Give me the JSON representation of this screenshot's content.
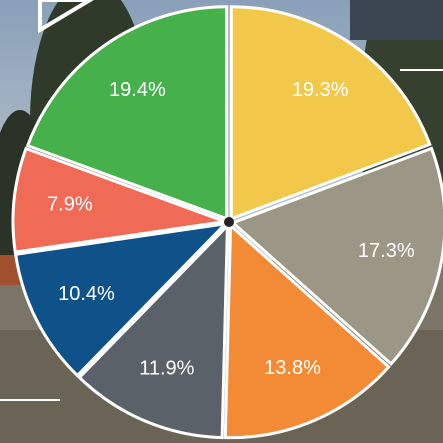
{
  "chart_data": {
    "type": "pie",
    "categories": [
      null,
      null,
      null,
      null,
      null,
      null,
      null
    ],
    "values": [
      19.3,
      17.3,
      13.8,
      11.9,
      10.4,
      7.9,
      19.4
    ],
    "value_labels": [
      "19.3%",
      "17.3%",
      "13.8%",
      "11.9%",
      "10.4%",
      "7.9%",
      "19.4%"
    ],
    "colors": [
      "#f2c84b",
      "#9b9686",
      "#f28a36",
      "#5b6169",
      "#0f5189",
      "#f06b56",
      "#46b04b"
    ]
  }
}
